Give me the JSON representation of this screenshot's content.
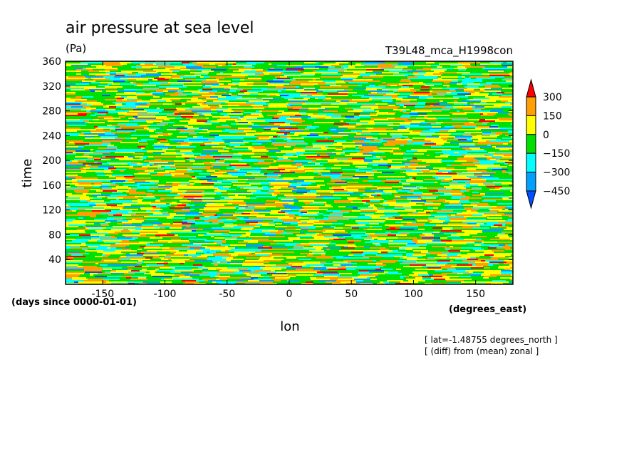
{
  "chart_data": {
    "type": "heatmap",
    "title": "air pressure at sea level",
    "units": "(Pa)",
    "run_label": "T39L48_mca_H1998con",
    "xlabel": "lon",
    "ylabel": "time",
    "x_units": "(degrees_east)",
    "y_units": "(days since 0000-01-01)",
    "xlim": [
      -180,
      180
    ],
    "ylim": [
      0,
      360
    ],
    "x_ticks": [
      -150,
      -100,
      -50,
      0,
      50,
      100,
      150
    ],
    "y_ticks": [
      40,
      80,
      120,
      160,
      200,
      240,
      280,
      320,
      360
    ],
    "colorbar": {
      "levels": [
        300,
        150,
        0,
        -150,
        -300,
        -450
      ],
      "colors": [
        "#ff0000",
        "#ffa000",
        "#ffff00",
        "#00e000",
        "#00ffff",
        "#00a0ff",
        "#0050ff"
      ]
    },
    "annotations": [
      "[ lat=-1.48755 degrees_north ]",
      "[ (diff) from (mean) zonal ]"
    ]
  }
}
